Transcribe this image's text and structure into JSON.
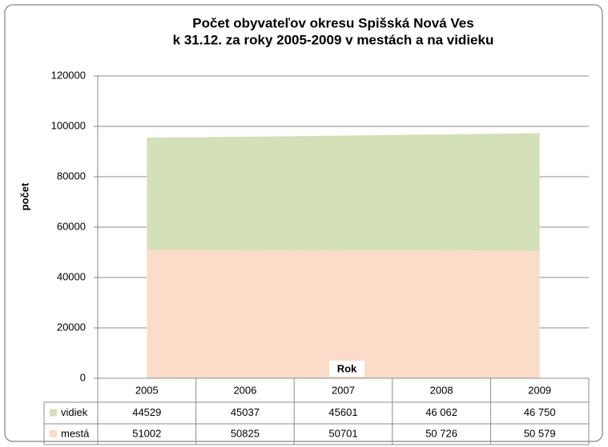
{
  "chart_data": {
    "type": "stacked-area",
    "title": [
      "Počet obyvateľov okresu Spišská Nová Ves",
      "k 31.12. za roky 2005-2009 v mestách a na vidieku"
    ],
    "xlabel": "Rok",
    "ylabel": "počet",
    "categories": [
      "2005",
      "2006",
      "2007",
      "2008",
      "2009"
    ],
    "series": [
      {
        "name": "vidiek",
        "color": "#d3e0b8",
        "values": [
          44529,
          45037,
          45601,
          46062,
          46750
        ],
        "value_labels": [
          "44529",
          "45037",
          "45601",
          "46 062",
          "46 750"
        ]
      },
      {
        "name": "mestá",
        "color": "#fbdcc8",
        "values": [
          51002,
          50825,
          50701,
          50726,
          50579
        ],
        "value_labels": [
          "51002",
          "50825",
          "50701",
          "50 726",
          "50 579"
        ]
      }
    ],
    "ylim": [
      0,
      120000
    ],
    "yticks": [
      0,
      20000,
      40000,
      60000,
      80000,
      100000,
      120000
    ],
    "grid": true
  }
}
